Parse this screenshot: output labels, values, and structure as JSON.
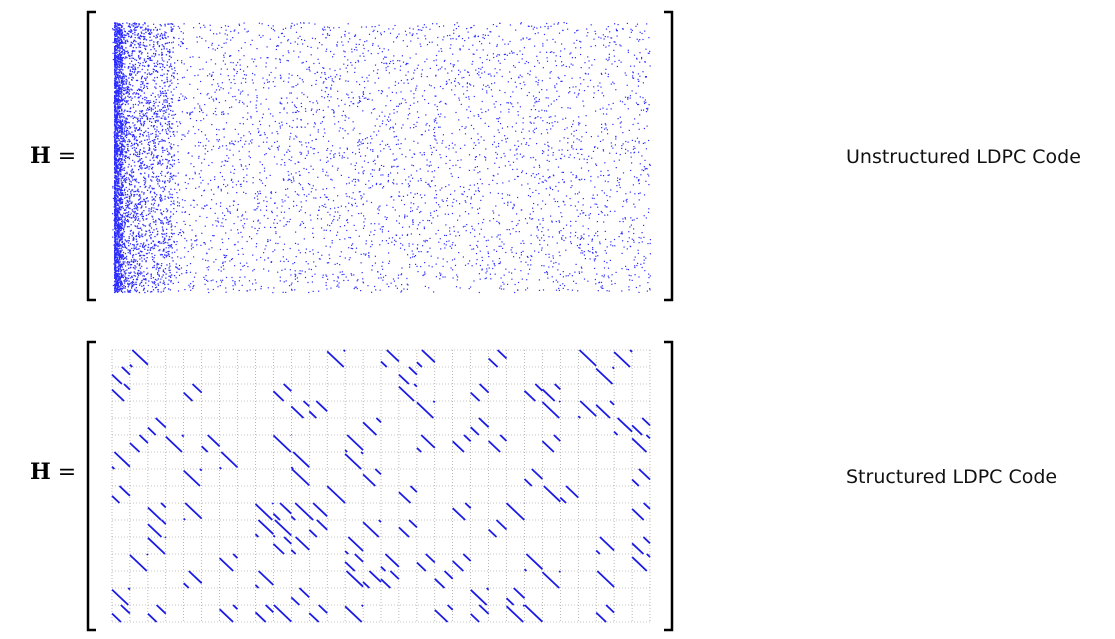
{
  "top": {
    "equation_symbol": "H",
    "equals": "=",
    "caption": "Unstructured LDPC Code",
    "dot_color": "#2b2bff"
  },
  "bottom": {
    "equation_symbol": "H",
    "equals": "=",
    "caption": "Structured LDPC Code",
    "line_color": "#1a1ae6",
    "grid_color": "#8a8a8a"
  }
}
